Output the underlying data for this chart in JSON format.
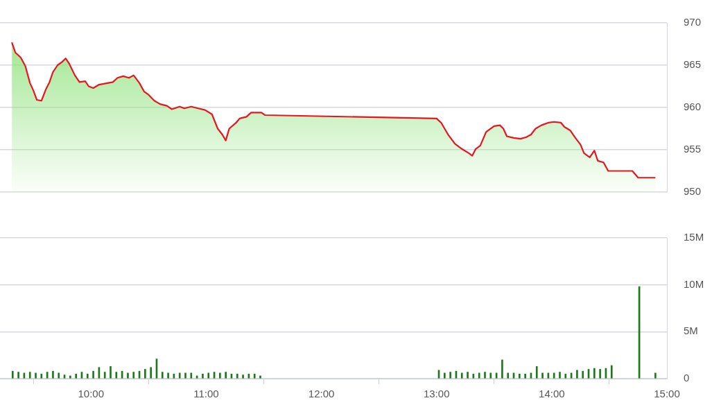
{
  "chart_data": [
    {
      "type": "area",
      "x": [
        9.313,
        9.343,
        9.39,
        9.43,
        9.47,
        9.5,
        9.53,
        9.57,
        9.61,
        9.64,
        9.67,
        9.71,
        9.75,
        9.78,
        9.81,
        9.86,
        9.9,
        9.95,
        9.98,
        10.02,
        10.07,
        10.11,
        10.19,
        10.23,
        10.28,
        10.33,
        10.37,
        10.42,
        10.46,
        10.5,
        10.55,
        10.6,
        10.66,
        10.7,
        10.77,
        10.81,
        10.87,
        10.93,
        10.99,
        11.05,
        11.1,
        11.14,
        11.17,
        11.2,
        11.26,
        11.29,
        11.35,
        11.39,
        11.44,
        11.48,
        11.51,
        13.0,
        13.04,
        13.1,
        13.16,
        13.22,
        13.28,
        13.31,
        13.34,
        13.38,
        13.43,
        13.46,
        13.5,
        13.55,
        13.58,
        13.61,
        13.67,
        13.73,
        13.78,
        13.82,
        13.86,
        13.91,
        13.97,
        14.02,
        14.08,
        14.11,
        14.16,
        14.2,
        14.25,
        14.28,
        14.33,
        14.37,
        14.4,
        14.45,
        14.49,
        14.7,
        14.75,
        14.9
      ],
      "series": [
        {
          "color": "#e8141e",
          "values": [
            967.7,
            966.5,
            965.9,
            964.9,
            962.9,
            962.0,
            960.9,
            960.8,
            962.2,
            963.0,
            964.2,
            965.0,
            965.4,
            965.8,
            965.2,
            963.8,
            963.0,
            963.1,
            962.5,
            962.3,
            962.7,
            962.8,
            963.0,
            963.5,
            963.7,
            963.5,
            963.8,
            962.9,
            961.9,
            961.5,
            960.8,
            960.4,
            960.2,
            959.8,
            960.1,
            959.9,
            960.1,
            959.9,
            959.7,
            959.2,
            957.5,
            956.8,
            956.1,
            957.5,
            958.2,
            958.7,
            958.9,
            959.4,
            959.4,
            959.4,
            959.1,
            958.7,
            958.2,
            956.8,
            955.7,
            955.1,
            954.6,
            954.3,
            955.1,
            955.5,
            957.1,
            957.4,
            957.8,
            957.9,
            957.5,
            956.6,
            956.4,
            956.3,
            956.5,
            956.8,
            957.5,
            957.9,
            958.2,
            958.3,
            958.2,
            957.7,
            957.3,
            956.5,
            955.6,
            954.6,
            954.1,
            954.9,
            953.7,
            953.5,
            952.5,
            952.5,
            951.7,
            951.7
          ]
        }
      ],
      "xlim": [
        9.21,
        15
      ],
      "ylim": [
        950,
        970
      ],
      "yticks": [
        950,
        955,
        960,
        965,
        970
      ],
      "grid": "y",
      "tick_labels": "y"
    },
    {
      "type": "bar",
      "x": [
        9.32,
        9.37,
        9.42,
        9.47,
        9.52,
        9.57,
        9.62,
        9.67,
        9.72,
        9.77,
        9.82,
        9.87,
        9.92,
        9.97,
        10.02,
        10.07,
        10.12,
        10.17,
        10.22,
        10.27,
        10.32,
        10.37,
        10.42,
        10.47,
        10.52,
        10.57,
        10.62,
        10.67,
        10.72,
        10.77,
        10.82,
        10.87,
        10.92,
        10.97,
        11.02,
        11.07,
        11.12,
        11.17,
        11.22,
        11.27,
        11.32,
        11.37,
        11.42,
        11.47,
        13.02,
        13.07,
        13.12,
        13.17,
        13.22,
        13.27,
        13.32,
        13.37,
        13.42,
        13.47,
        13.52,
        13.57,
        13.62,
        13.67,
        13.72,
        13.77,
        13.82,
        13.87,
        13.92,
        13.97,
        14.02,
        14.07,
        14.12,
        14.17,
        14.22,
        14.27,
        14.32,
        14.37,
        14.42,
        14.47,
        14.52,
        14.76,
        14.9
      ],
      "series": [
        {
          "color": "#1a7a1a",
          "values": [
            0.8,
            0.7,
            0.6,
            0.7,
            0.6,
            0.5,
            0.7,
            0.8,
            0.6,
            0.4,
            0.3,
            0.5,
            0.7,
            0.5,
            0.8,
            1.2,
            0.7,
            1.3,
            0.7,
            0.8,
            0.6,
            0.7,
            0.8,
            1.0,
            1.2,
            2.1,
            0.7,
            0.6,
            0.5,
            0.6,
            0.6,
            0.6,
            0.3,
            0.5,
            0.6,
            0.7,
            0.6,
            0.7,
            0.5,
            0.5,
            0.4,
            0.5,
            0.5,
            0.3,
            0.9,
            0.6,
            0.7,
            0.8,
            0.6,
            0.7,
            0.5,
            0.6,
            0.7,
            0.6,
            0.6,
            2.0,
            0.6,
            0.6,
            0.5,
            0.5,
            0.6,
            1.3,
            0.6,
            0.6,
            0.6,
            0.7,
            0.5,
            0.6,
            0.9,
            0.8,
            1.0,
            1.1,
            1.0,
            1.1,
            1.4,
            9.8,
            0.6
          ]
        }
      ],
      "xlim": [
        9.21,
        15
      ],
      "xticks": [
        {
          "value": 10,
          "label": "10:00"
        },
        {
          "value": 11,
          "label": "11:00"
        },
        {
          "value": 12,
          "label": "12:00"
        },
        {
          "value": 13,
          "label": "13:00"
        },
        {
          "value": 14,
          "label": "14:00"
        },
        {
          "value": 15,
          "label": "15:00"
        }
      ],
      "ylim": [
        0,
        15
      ],
      "yticks": [
        {
          "value": 0,
          "label": "0"
        },
        {
          "value": 5,
          "label": "5M"
        },
        {
          "value": 10,
          "label": "10M"
        },
        {
          "value": 15,
          "label": "15M"
        }
      ],
      "grid": "y"
    }
  ]
}
